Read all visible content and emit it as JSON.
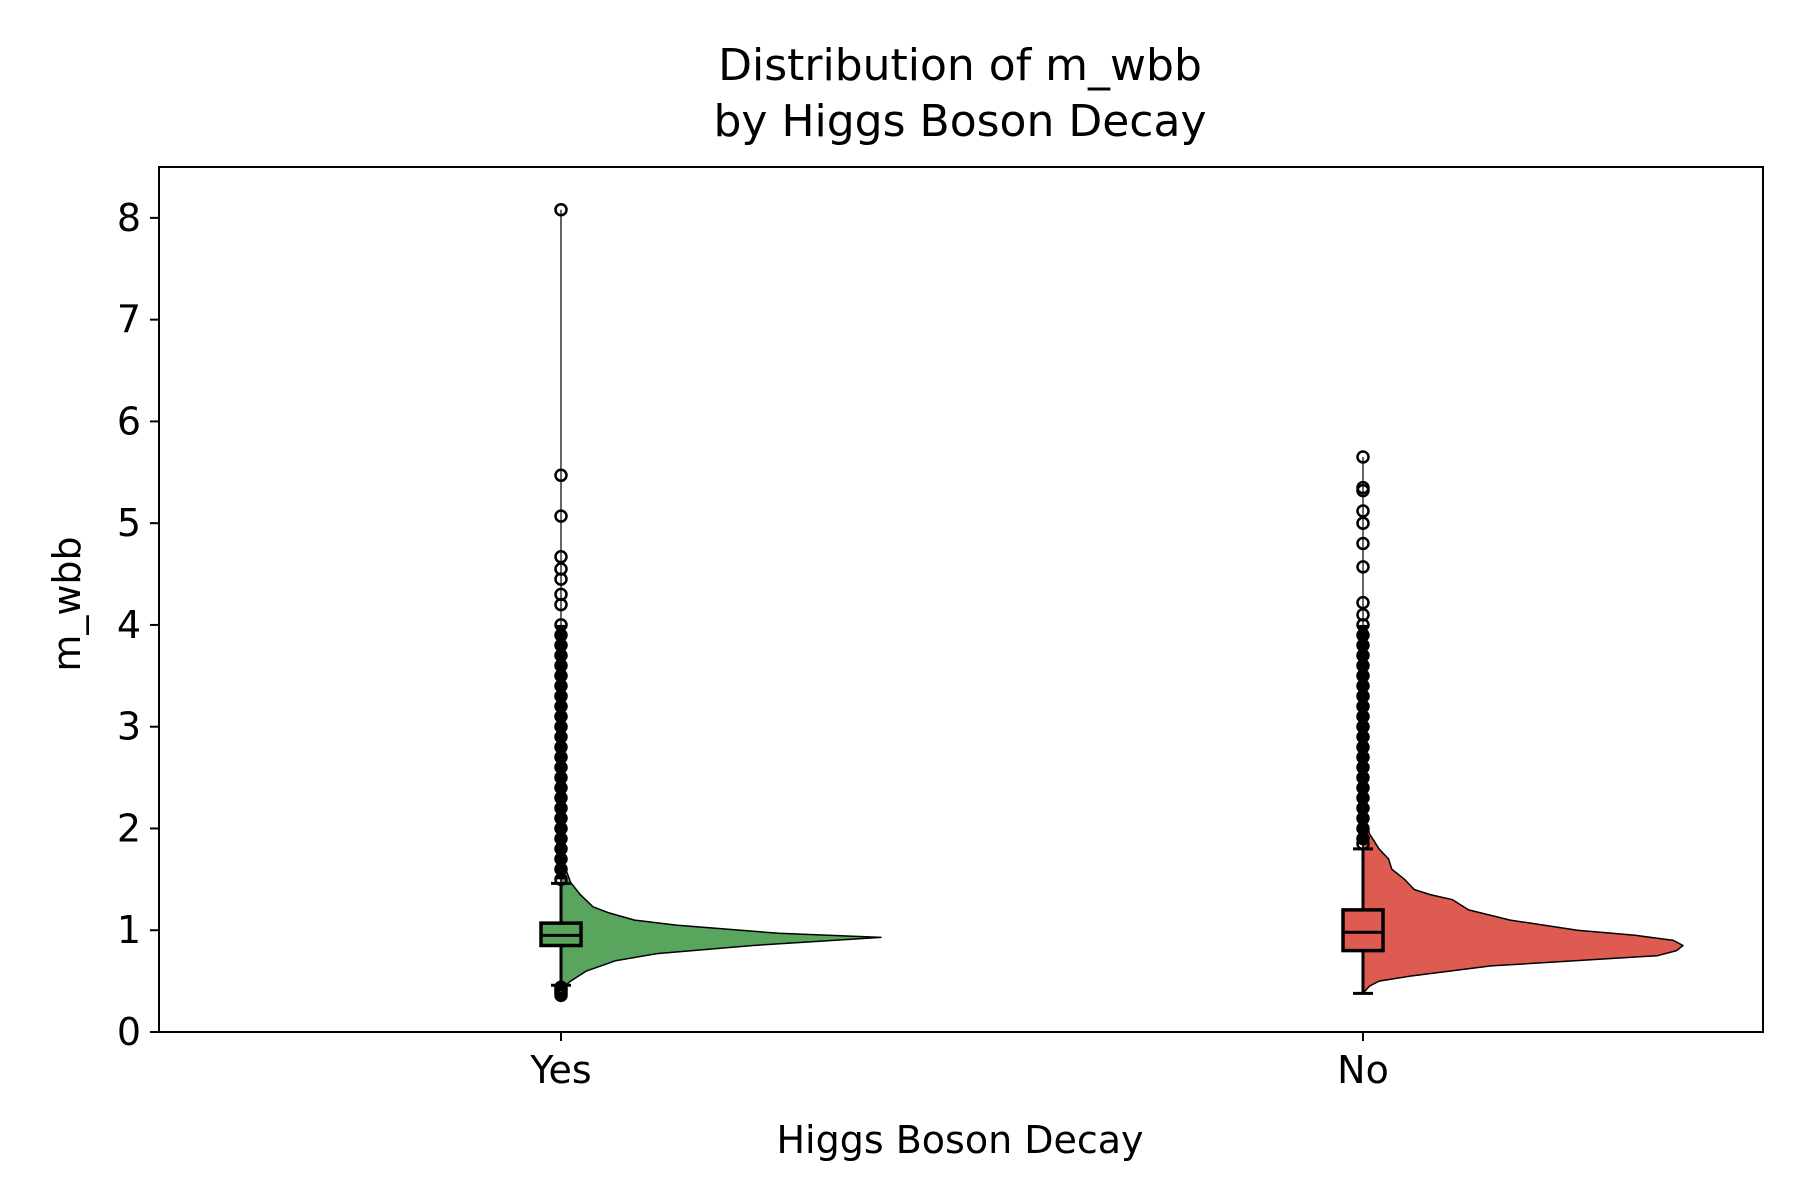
{
  "chart_data": {
    "type": "raincloud",
    "title_line1": "Distribution of m_wbb",
    "title_line2": "by Higgs Boson Decay",
    "xlabel": "Higgs Boson Decay",
    "ylabel": "m_wbb",
    "categories": [
      "Yes",
      "No"
    ],
    "ylim": [
      0,
      8.5
    ],
    "yticks": [
      0,
      1,
      2,
      3,
      4,
      5,
      6,
      7,
      8
    ],
    "grid": false,
    "colors": {
      "Yes": "#59a55d",
      "No": "#dd5b50"
    },
    "series": [
      {
        "category": "Yes",
        "box": {
          "whisker_low": 0.46,
          "q1": 0.85,
          "median": 0.95,
          "q3": 1.07,
          "whisker_high": 1.46
        },
        "outliers_high": [
          1.5,
          1.6,
          1.7,
          1.8,
          1.9,
          2.0,
          2.1,
          2.2,
          2.3,
          2.4,
          2.5,
          2.6,
          2.7,
          2.8,
          2.9,
          3.0,
          3.1,
          3.2,
          3.3,
          3.4,
          3.5,
          3.6,
          3.7,
          3.8,
          3.9,
          4.0,
          4.2,
          4.3,
          4.45,
          4.55,
          4.67,
          5.07,
          5.47,
          8.08
        ],
        "outliers_low": [
          0.36,
          0.38,
          0.4,
          0.42,
          0.44
        ],
        "density": [
          [
            0.42,
            0.0
          ],
          [
            0.5,
            0.03
          ],
          [
            0.6,
            0.08
          ],
          [
            0.7,
            0.17
          ],
          [
            0.77,
            0.3
          ],
          [
            0.85,
            0.6
          ],
          [
            0.93,
            1.0
          ],
          [
            0.97,
            0.68
          ],
          [
            1.05,
            0.36
          ],
          [
            1.1,
            0.23
          ],
          [
            1.17,
            0.15
          ],
          [
            1.23,
            0.1
          ],
          [
            1.35,
            0.06
          ],
          [
            1.47,
            0.03
          ],
          [
            1.6,
            0.015
          ],
          [
            1.8,
            0.0
          ]
        ]
      },
      {
        "category": "No",
        "box": {
          "whisker_low": 0.38,
          "q1": 0.8,
          "median": 0.98,
          "q3": 1.2,
          "whisker_high": 1.8
        },
        "outliers_high": [
          1.85,
          1.9,
          2.0,
          2.1,
          2.2,
          2.3,
          2.4,
          2.5,
          2.6,
          2.7,
          2.8,
          2.9,
          3.0,
          3.1,
          3.2,
          3.3,
          3.4,
          3.5,
          3.6,
          3.7,
          3.8,
          3.9,
          4.0,
          4.1,
          4.22,
          4.57,
          4.8,
          5.0,
          5.12,
          5.32,
          5.35,
          5.65
        ],
        "outliers_low": [],
        "density": [
          [
            0.38,
            0.0
          ],
          [
            0.45,
            0.02
          ],
          [
            0.5,
            0.05
          ],
          [
            0.55,
            0.15
          ],
          [
            0.65,
            0.4
          ],
          [
            0.75,
            0.92
          ],
          [
            0.8,
            0.98
          ],
          [
            0.85,
            1.0
          ],
          [
            0.9,
            0.97
          ],
          [
            0.95,
            0.85
          ],
          [
            1.0,
            0.67
          ],
          [
            1.1,
            0.46
          ],
          [
            1.2,
            0.33
          ],
          [
            1.3,
            0.28
          ],
          [
            1.35,
            0.21
          ],
          [
            1.4,
            0.16
          ],
          [
            1.5,
            0.13
          ],
          [
            1.6,
            0.09
          ],
          [
            1.7,
            0.08
          ],
          [
            1.8,
            0.05
          ],
          [
            1.95,
            0.02
          ],
          [
            2.2,
            0.0
          ]
        ]
      }
    ]
  }
}
